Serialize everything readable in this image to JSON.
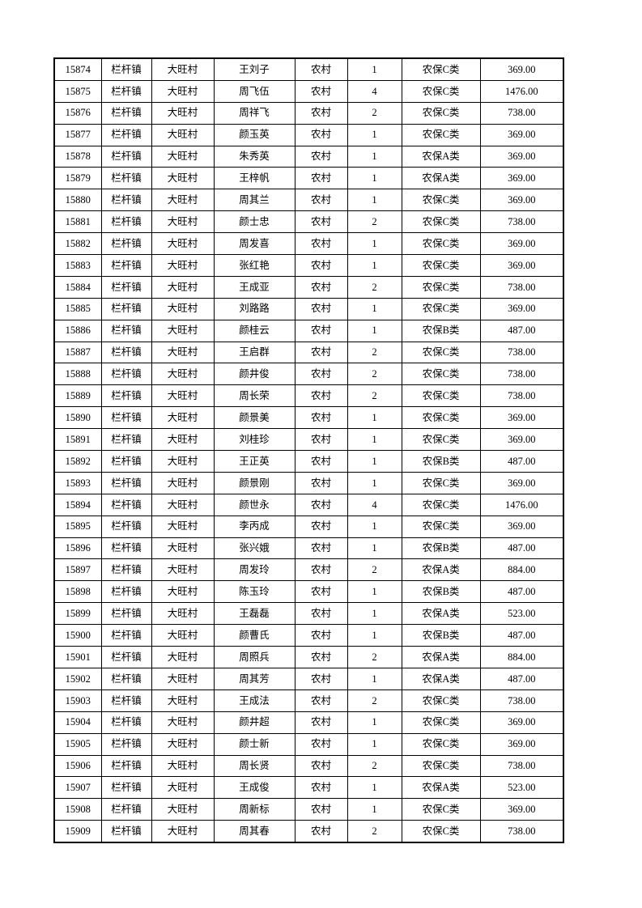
{
  "page": {
    "background_color": "#ffffff",
    "text_color": "#000000",
    "table_border_color": "#000000"
  },
  "table": {
    "row_fields": [
      "record-id",
      "town",
      "village",
      "person-name",
      "category",
      "person-count",
      "insurance-type",
      "amount"
    ],
    "rows": [
      [
        "15874",
        "栏杆镇",
        "大旺村",
        "王刘子",
        "农村",
        "1",
        "农保C类",
        "369.00"
      ],
      [
        "15875",
        "栏杆镇",
        "大旺村",
        "周飞伍",
        "农村",
        "4",
        "农保C类",
        "1476.00"
      ],
      [
        "15876",
        "栏杆镇",
        "大旺村",
        "周祥飞",
        "农村",
        "2",
        "农保C类",
        "738.00"
      ],
      [
        "15877",
        "栏杆镇",
        "大旺村",
        "颜玉英",
        "农村",
        "1",
        "农保C类",
        "369.00"
      ],
      [
        "15878",
        "栏杆镇",
        "大旺村",
        "朱秀英",
        "农村",
        "1",
        "农保A类",
        "369.00"
      ],
      [
        "15879",
        "栏杆镇",
        "大旺村",
        "王梓帆",
        "农村",
        "1",
        "农保A类",
        "369.00"
      ],
      [
        "15880",
        "栏杆镇",
        "大旺村",
        "周其兰",
        "农村",
        "1",
        "农保C类",
        "369.00"
      ],
      [
        "15881",
        "栏杆镇",
        "大旺村",
        "颜士忠",
        "农村",
        "2",
        "农保C类",
        "738.00"
      ],
      [
        "15882",
        "栏杆镇",
        "大旺村",
        "周发喜",
        "农村",
        "1",
        "农保C类",
        "369.00"
      ],
      [
        "15883",
        "栏杆镇",
        "大旺村",
        "张红艳",
        "农村",
        "1",
        "农保C类",
        "369.00"
      ],
      [
        "15884",
        "栏杆镇",
        "大旺村",
        "王成亚",
        "农村",
        "2",
        "农保C类",
        "738.00"
      ],
      [
        "15885",
        "栏杆镇",
        "大旺村",
        "刘路路",
        "农村",
        "1",
        "农保C类",
        "369.00"
      ],
      [
        "15886",
        "栏杆镇",
        "大旺村",
        "颜桂云",
        "农村",
        "1",
        "农保B类",
        "487.00"
      ],
      [
        "15887",
        "栏杆镇",
        "大旺村",
        "王启群",
        "农村",
        "2",
        "农保C类",
        "738.00"
      ],
      [
        "15888",
        "栏杆镇",
        "大旺村",
        "颜井俊",
        "农村",
        "2",
        "农保C类",
        "738.00"
      ],
      [
        "15889",
        "栏杆镇",
        "大旺村",
        "周长荣",
        "农村",
        "2",
        "农保C类",
        "738.00"
      ],
      [
        "15890",
        "栏杆镇",
        "大旺村",
        "颜景美",
        "农村",
        "1",
        "农保C类",
        "369.00"
      ],
      [
        "15891",
        "栏杆镇",
        "大旺村",
        "刘桂珍",
        "农村",
        "1",
        "农保C类",
        "369.00"
      ],
      [
        "15892",
        "栏杆镇",
        "大旺村",
        "王正英",
        "农村",
        "1",
        "农保B类",
        "487.00"
      ],
      [
        "15893",
        "栏杆镇",
        "大旺村",
        "颜景刚",
        "农村",
        "1",
        "农保C类",
        "369.00"
      ],
      [
        "15894",
        "栏杆镇",
        "大旺村",
        "颜世永",
        "农村",
        "4",
        "农保C类",
        "1476.00"
      ],
      [
        "15895",
        "栏杆镇",
        "大旺村",
        "李丙成",
        "农村",
        "1",
        "农保C类",
        "369.00"
      ],
      [
        "15896",
        "栏杆镇",
        "大旺村",
        "张兴娥",
        "农村",
        "1",
        "农保B类",
        "487.00"
      ],
      [
        "15897",
        "栏杆镇",
        "大旺村",
        "周发玲",
        "农村",
        "2",
        "农保A类",
        "884.00"
      ],
      [
        "15898",
        "栏杆镇",
        "大旺村",
        "陈玉玲",
        "农村",
        "1",
        "农保B类",
        "487.00"
      ],
      [
        "15899",
        "栏杆镇",
        "大旺村",
        "王磊磊",
        "农村",
        "1",
        "农保A类",
        "523.00"
      ],
      [
        "15900",
        "栏杆镇",
        "大旺村",
        "颜曹氏",
        "农村",
        "1",
        "农保B类",
        "487.00"
      ],
      [
        "15901",
        "栏杆镇",
        "大旺村",
        "周照兵",
        "农村",
        "2",
        "农保A类",
        "884.00"
      ],
      [
        "15902",
        "栏杆镇",
        "大旺村",
        "周其芳",
        "农村",
        "1",
        "农保A类",
        "487.00"
      ],
      [
        "15903",
        "栏杆镇",
        "大旺村",
        "王成法",
        "农村",
        "2",
        "农保C类",
        "738.00"
      ],
      [
        "15904",
        "栏杆镇",
        "大旺村",
        "颜井超",
        "农村",
        "1",
        "农保C类",
        "369.00"
      ],
      [
        "15905",
        "栏杆镇",
        "大旺村",
        "颜士新",
        "农村",
        "1",
        "农保C类",
        "369.00"
      ],
      [
        "15906",
        "栏杆镇",
        "大旺村",
        "周长贤",
        "农村",
        "2",
        "农保C类",
        "738.00"
      ],
      [
        "15907",
        "栏杆镇",
        "大旺村",
        "王成俊",
        "农村",
        "1",
        "农保A类",
        "523.00"
      ],
      [
        "15908",
        "栏杆镇",
        "大旺村",
        "周新标",
        "农村",
        "1",
        "农保C类",
        "369.00"
      ],
      [
        "15909",
        "栏杆镇",
        "大旺村",
        "周其春",
        "农村",
        "2",
        "农保C类",
        "738.00"
      ]
    ]
  }
}
